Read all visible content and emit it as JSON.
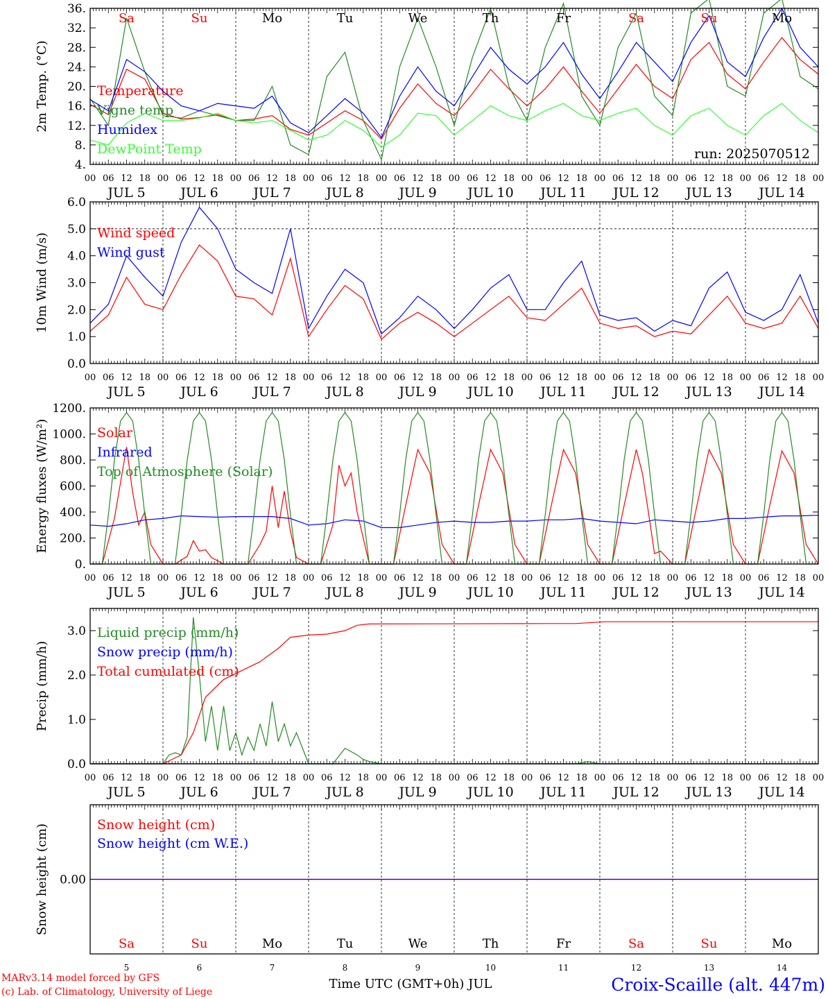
{
  "header": {
    "run_label": "run: 2025070512",
    "credit_line1": "MARv3.14 model forced by GFS",
    "credit_line2": "(c) Lab. of Climatology, University of Liege",
    "station": "Croix-Scaille (alt. 447m)",
    "time_axis_title": "Time UTC (GMT+0h) JUL"
  },
  "days": [
    {
      "abbr": "Sa",
      "date": "JUL  5",
      "num": "5",
      "weekend": true
    },
    {
      "abbr": "Su",
      "date": "JUL  6",
      "num": "6",
      "weekend": true
    },
    {
      "abbr": "Mo",
      "date": "JUL  7",
      "num": "7",
      "weekend": false
    },
    {
      "abbr": "Tu",
      "date": "JUL  8",
      "num": "8",
      "weekend": false
    },
    {
      "abbr": "We",
      "date": "JUL  9",
      "num": "9",
      "weekend": false
    },
    {
      "abbr": "Th",
      "date": "JUL 10",
      "num": "10",
      "weekend": false
    },
    {
      "abbr": "Fr",
      "date": "JUL 11",
      "num": "11",
      "weekend": false
    },
    {
      "abbr": "Sa",
      "date": "JUL 12",
      "num": "12",
      "weekend": true
    },
    {
      "abbr": "Su",
      "date": "JUL 13",
      "num": "13",
      "weekend": true
    },
    {
      "abbr": "Mo",
      "date": "JUL 14",
      "num": "14",
      "weekend": false
    }
  ],
  "hour_ticks": [
    "00",
    "06",
    "12",
    "18"
  ],
  "colors": {
    "red": "#ff0000",
    "darkgreen": "#228b22",
    "blue": "#0000ff",
    "lightgreen": "#33ff33",
    "weekend": "#ff0000",
    "weekday": "#000000",
    "credit": "#ff0000",
    "station": "#0000ff"
  },
  "chart_data": [
    {
      "type": "line",
      "ylabel": "2m Temp. (°C)",
      "ylim": [
        4,
        36
      ],
      "yticks": [
        "4.",
        "8.",
        "12.",
        "16.",
        "20.",
        "24.",
        "28.",
        "32.",
        "36."
      ],
      "x_unit": "hours since JUL 5 00 UTC",
      "show_day_abbr": true,
      "show_run": true,
      "series": [
        {
          "name": "Temperature",
          "color": "red",
          "x": [
            0,
            6,
            12,
            18,
            24,
            30,
            36,
            42,
            48,
            54,
            60,
            66,
            72,
            78,
            84,
            90,
            96,
            102,
            108,
            114,
            120,
            126,
            132,
            138,
            144,
            150,
            156,
            162,
            168,
            174,
            180,
            186,
            192,
            198,
            204,
            210,
            216,
            222,
            228,
            234,
            240
          ],
          "y": [
            16.3,
            14.2,
            23.5,
            21.5,
            14.5,
            13.3,
            13.6,
            14.2,
            13,
            13.3,
            14,
            11.2,
            10,
            12.5,
            15,
            13,
            9.2,
            15.5,
            20.5,
            16.5,
            14,
            18.5,
            23.5,
            19.5,
            16,
            19.5,
            24,
            19,
            14.5,
            19.5,
            24.5,
            20,
            17.5,
            25.5,
            29,
            22.5,
            19.5,
            25,
            30,
            25.5,
            22.5
          ]
        },
        {
          "name": "Vigne temp",
          "color": "darkgreen",
          "x": [
            0,
            6,
            12,
            18,
            24,
            30,
            36,
            42,
            48,
            54,
            60,
            66,
            72,
            78,
            84,
            90,
            96,
            102,
            108,
            114,
            120,
            126,
            132,
            138,
            144,
            150,
            156,
            162,
            168,
            174,
            180,
            186,
            192,
            198,
            204,
            210,
            216,
            222,
            228,
            234,
            240
          ],
          "y": [
            17.5,
            12,
            34,
            23,
            14,
            13.5,
            15,
            14,
            13,
            13,
            20,
            8,
            6,
            22,
            27,
            13,
            5,
            24,
            34,
            24,
            12,
            26,
            36,
            20,
            13,
            28,
            37,
            18,
            12,
            28,
            35,
            18,
            14,
            35,
            38,
            20,
            18,
            35,
            38,
            22,
            19.5
          ]
        },
        {
          "name": "Humidex",
          "color": "blue",
          "x": [
            0,
            6,
            12,
            18,
            24,
            30,
            36,
            42,
            48,
            54,
            60,
            66,
            72,
            78,
            84,
            90,
            96,
            102,
            108,
            114,
            120,
            126,
            132,
            138,
            144,
            150,
            156,
            162,
            168,
            174,
            180,
            186,
            192,
            198,
            204,
            210,
            216,
            222,
            228,
            234,
            240
          ],
          "y": [
            17.3,
            15,
            25.5,
            23,
            19,
            16,
            15,
            16.5,
            16,
            15.5,
            18,
            12.5,
            10.5,
            14,
            17.5,
            14.5,
            9.5,
            18,
            24,
            19,
            16,
            22,
            28,
            23.5,
            20.5,
            24,
            29,
            22.5,
            17.5,
            23,
            29,
            25,
            21,
            29,
            34.5,
            25,
            22,
            30,
            36,
            28,
            24
          ]
        },
        {
          "name": "DewPoint Temp",
          "color": "lightgreen",
          "x": [
            0,
            6,
            12,
            18,
            24,
            30,
            36,
            42,
            48,
            54,
            60,
            66,
            72,
            78,
            84,
            90,
            96,
            102,
            108,
            114,
            120,
            126,
            132,
            138,
            144,
            150,
            156,
            162,
            168,
            174,
            180,
            186,
            192,
            198,
            204,
            210,
            216,
            222,
            228,
            234,
            240
          ],
          "y": [
            9,
            8,
            12.5,
            14.5,
            13,
            13,
            13.5,
            14.5,
            13,
            12.5,
            13,
            11,
            9,
            10,
            13,
            11,
            7.5,
            10,
            14.5,
            14,
            10,
            13,
            16,
            14,
            13,
            15,
            16.5,
            14,
            13,
            14.5,
            15.5,
            12,
            10,
            14,
            15.5,
            12,
            10,
            14,
            16.5,
            13,
            10.5
          ]
        }
      ]
    },
    {
      "type": "line",
      "ylabel": "10m Wind (m/s)",
      "ylim": [
        0,
        6
      ],
      "yticks": [
        "0.0",
        "1.0",
        "2.0",
        "3.0",
        "4.0",
        "5.0",
        "6.0"
      ],
      "ref_line": 5,
      "x_unit": "hours since JUL 5 00 UTC",
      "series": [
        {
          "name": "Wind speed",
          "color": "red",
          "x": [
            0,
            6,
            12,
            18,
            24,
            30,
            36,
            42,
            48,
            54,
            60,
            66,
            72,
            78,
            84,
            90,
            96,
            102,
            108,
            114,
            120,
            126,
            132,
            138,
            144,
            150,
            156,
            162,
            168,
            174,
            180,
            186,
            192,
            198,
            204,
            210,
            216,
            222,
            228,
            234,
            240
          ],
          "y": [
            1.2,
            1.8,
            3.2,
            2.2,
            2.0,
            3.3,
            4.4,
            3.8,
            2.5,
            2.4,
            1.8,
            3.9,
            1.0,
            2.0,
            2.9,
            2.4,
            0.9,
            1.5,
            1.9,
            1.5,
            1.0,
            1.5,
            2.0,
            2.5,
            1.7,
            1.6,
            2.2,
            2.8,
            1.5,
            1.3,
            1.4,
            1.0,
            1.2,
            1.1,
            1.8,
            2.5,
            1.5,
            1.3,
            1.5,
            2.5,
            1.3
          ]
        },
        {
          "name": "Wind gust",
          "color": "blue",
          "x": [
            0,
            6,
            12,
            18,
            24,
            30,
            36,
            42,
            48,
            54,
            60,
            66,
            72,
            78,
            84,
            90,
            96,
            102,
            108,
            114,
            120,
            126,
            132,
            138,
            144,
            150,
            156,
            162,
            168,
            174,
            180,
            186,
            192,
            198,
            204,
            210,
            216,
            222,
            228,
            234,
            240
          ],
          "y": [
            1.5,
            2.2,
            4.0,
            3.2,
            2.5,
            4.5,
            5.8,
            5.0,
            3.5,
            3.0,
            2.6,
            5.0,
            1.3,
            2.5,
            3.5,
            3.0,
            1.1,
            1.7,
            2.5,
            2.0,
            1.3,
            2.0,
            2.8,
            3.3,
            2.0,
            2.0,
            3.0,
            3.8,
            1.8,
            1.6,
            1.7,
            1.2,
            1.6,
            1.4,
            2.8,
            3.4,
            1.9,
            1.6,
            2.0,
            3.3,
            1.5
          ]
        }
      ]
    },
    {
      "type": "line",
      "ylabel": "Energy fluxes (W/m²)",
      "ylim": [
        0,
        1200
      ],
      "yticks": [
        "0.",
        "200.",
        "400.",
        "600.",
        "800.",
        "1000.",
        "1200."
      ],
      "x_unit": "hours since JUL 5 00 UTC",
      "series": [
        {
          "name": "Solar",
          "color": "red",
          "x": [
            0,
            4,
            8,
            12,
            14,
            16,
            18,
            20,
            24,
            28,
            32,
            34,
            36,
            38,
            40,
            44,
            48,
            52,
            56,
            58,
            60,
            62,
            64,
            66,
            68,
            72,
            76,
            80,
            82,
            84,
            86,
            88,
            90,
            92,
            96,
            100,
            104,
            108,
            112,
            116,
            120,
            124,
            128,
            132,
            136,
            140,
            144,
            148,
            152,
            156,
            160,
            164,
            168,
            172,
            176,
            180,
            182,
            184,
            186,
            188,
            192,
            196,
            200,
            204,
            208,
            212,
            216,
            220,
            224,
            228,
            232,
            236,
            240
          ],
          "y": [
            0,
            0,
            350,
            900,
            550,
            300,
            400,
            150,
            0,
            0,
            60,
            180,
            100,
            110,
            50,
            0,
            0,
            0,
            150,
            250,
            600,
            280,
            560,
            250,
            50,
            0,
            0,
            300,
            760,
            600,
            700,
            400,
            200,
            0,
            0,
            0,
            450,
            880,
            700,
            150,
            0,
            0,
            450,
            880,
            700,
            150,
            0,
            0,
            450,
            880,
            700,
            150,
            0,
            0,
            450,
            880,
            700,
            400,
            80,
            100,
            0,
            0,
            450,
            880,
            700,
            150,
            0,
            0,
            450,
            870,
            700,
            150,
            0
          ]
        },
        {
          "name": "Infrared",
          "color": "blue",
          "x": [
            0,
            6,
            12,
            18,
            24,
            30,
            36,
            42,
            48,
            54,
            60,
            66,
            72,
            78,
            84,
            90,
            96,
            102,
            108,
            114,
            120,
            126,
            132,
            138,
            144,
            150,
            156,
            162,
            168,
            174,
            180,
            186,
            192,
            198,
            204,
            210,
            216,
            222,
            228,
            234,
            240
          ],
          "y": [
            300,
            290,
            310,
            340,
            350,
            370,
            365,
            360,
            365,
            365,
            365,
            350,
            300,
            310,
            340,
            330,
            280,
            280,
            300,
            320,
            330,
            320,
            320,
            330,
            330,
            340,
            340,
            350,
            330,
            320,
            310,
            340,
            330,
            320,
            330,
            350,
            350,
            360,
            370,
            370,
            375
          ]
        },
        {
          "name": "Top of Atmosphere (Solar)",
          "color": "darkgreen",
          "x": [
            0,
            4,
            6,
            8,
            10,
            12,
            14,
            16,
            18,
            20,
            24
          ],
          "y": [
            0,
            0,
            380,
            800,
            1100,
            1165,
            1100,
            800,
            380,
            0,
            0
          ],
          "periodic_days": 10
        }
      ]
    },
    {
      "type": "line",
      "ylabel": "Precip (mm/h)",
      "ylim": [
        0,
        3.5
      ],
      "yticks": [
        "0.0",
        "1.0",
        "2.0",
        "3.0"
      ],
      "x_unit": "hours since JUL 5 00 UTC",
      "series": [
        {
          "name": "Liquid precip (mm/h)",
          "color": "darkgreen",
          "x": [
            0,
            24,
            26,
            28,
            30,
            32,
            34,
            36,
            38,
            40,
            42,
            44,
            46,
            48,
            50,
            52,
            54,
            56,
            58,
            60,
            62,
            64,
            66,
            68,
            72,
            80,
            84,
            88,
            90,
            92,
            96,
            160,
            164,
            168,
            240
          ],
          "y": [
            0,
            0,
            0.2,
            0.25,
            0.2,
            0.6,
            3.3,
            2.0,
            0.5,
            1.3,
            0.3,
            1.3,
            0.3,
            0.7,
            0.2,
            0.6,
            0.3,
            0.9,
            0.4,
            1.4,
            0.5,
            0.9,
            0.4,
            0.7,
            0,
            0,
            0.35,
            0.2,
            0.1,
            0.05,
            0,
            0,
            0.05,
            0,
            0
          ]
        },
        {
          "name": "Snow precip (mm/h)",
          "color": "blue",
          "x": [
            0,
            240
          ],
          "y": [
            0,
            0
          ]
        },
        {
          "name": "Total cumulated (cm)",
          "color": "red",
          "x": [
            0,
            24,
            30,
            34,
            38,
            44,
            50,
            56,
            62,
            66,
            72,
            78,
            84,
            88,
            92,
            96,
            150,
            160,
            170,
            240
          ],
          "y": [
            0,
            0,
            0.2,
            0.7,
            1.5,
            1.9,
            2.1,
            2.3,
            2.6,
            2.85,
            2.9,
            2.92,
            3.0,
            3.12,
            3.15,
            3.15,
            3.16,
            3.16,
            3.2,
            3.2
          ]
        }
      ]
    },
    {
      "type": "line",
      "ylabel": "Snow height (cm)",
      "ylim": [
        -1,
        1
      ],
      "yticks": [
        "0.00"
      ],
      "x_unit": "hours since JUL 5 00 UTC",
      "series": [
        {
          "name": "Snow height (cm)",
          "color": "red",
          "x": [
            0,
            240
          ],
          "y": [
            0,
            0
          ]
        },
        {
          "name": "Snow height (cm W.E.)",
          "color": "blue",
          "x": [
            0,
            240
          ],
          "y": [
            0,
            0
          ]
        }
      ]
    }
  ]
}
